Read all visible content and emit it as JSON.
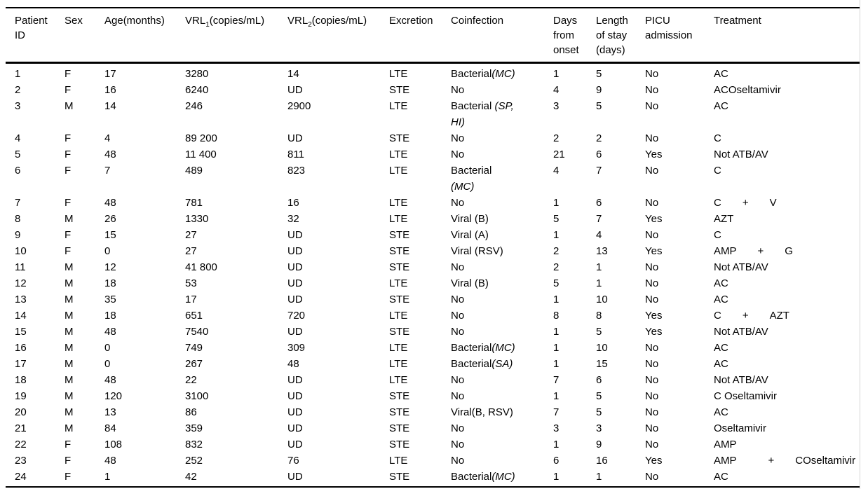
{
  "table": {
    "headers": [
      {
        "label": "Patient\nID"
      },
      {
        "label": "Sex"
      },
      {
        "label": "Age(months)"
      },
      {
        "pre": "VRL",
        "sub": "1",
        "post": "(copies/mL)"
      },
      {
        "pre": "VRL",
        "sub": "2",
        "post": "(copies/mL)"
      },
      {
        "label": "Excretion"
      },
      {
        "label": "Coinfection"
      },
      {
        "label": "Days\nfrom\nonset"
      },
      {
        "label": "Length\nof stay\n(days)"
      },
      {
        "label": "PICU\nadmission"
      },
      {
        "label": "Treatment"
      }
    ],
    "rows": [
      {
        "id": "1",
        "sex": "F",
        "age": "17",
        "vrl1": "3280",
        "vrl2": "14",
        "excretion": "LTE",
        "coinfection": [
          {
            "t": "Bacterial",
            "i": false
          },
          {
            "t": "(MC)",
            "i": true
          }
        ],
        "days_from_onset": "1",
        "length_of_stay": "5",
        "picu": "No",
        "treatment": "AC"
      },
      {
        "id": "2",
        "sex": "F",
        "age": "16",
        "vrl1": "6240",
        "vrl2": "UD",
        "excretion": "STE",
        "coinfection": [
          {
            "t": "No",
            "i": false
          }
        ],
        "days_from_onset": "4",
        "length_of_stay": "9",
        "picu": "No",
        "treatment": "ACOseltamivir"
      },
      {
        "id": "3",
        "sex": "M",
        "age": "14",
        "vrl1": "246",
        "vrl2": "2900",
        "excretion": "LTE",
        "coinfection": [
          {
            "t": "Bacterial ",
            "i": false
          },
          {
            "t": "(SP,\nHI)",
            "i": true
          }
        ],
        "days_from_onset": "3",
        "length_of_stay": "5",
        "picu": "No",
        "treatment": "AC"
      },
      {
        "id": "4",
        "sex": "F",
        "age": "4",
        "vrl1": "89 200",
        "vrl2": "UD",
        "excretion": "STE",
        "coinfection": [
          {
            "t": "No",
            "i": false
          }
        ],
        "days_from_onset": "2",
        "length_of_stay": "2",
        "picu": "No",
        "treatment": "C"
      },
      {
        "id": "5",
        "sex": "F",
        "age": "48",
        "vrl1": "11 400",
        "vrl2": "811",
        "excretion": "LTE",
        "coinfection": [
          {
            "t": "No",
            "i": false
          }
        ],
        "days_from_onset": "21",
        "length_of_stay": "6",
        "picu": "Yes",
        "treatment": "Not ATB/AV"
      },
      {
        "id": "6",
        "sex": "F",
        "age": "7",
        "vrl1": "489",
        "vrl2": "823",
        "excretion": "LTE",
        "coinfection": [
          {
            "t": "Bacterial\n",
            "i": false
          },
          {
            "t": "(MC)",
            "i": true
          }
        ],
        "days_from_onset": "4",
        "length_of_stay": "7",
        "picu": "No",
        "treatment": "C"
      },
      {
        "id": "7",
        "sex": "F",
        "age": "48",
        "vrl1": "781",
        "vrl2": "16",
        "excretion": "LTE",
        "coinfection": [
          {
            "t": "No",
            "i": false
          }
        ],
        "days_from_onset": "1",
        "length_of_stay": "6",
        "picu": "No",
        "treatment": "C  +  V"
      },
      {
        "id": "8",
        "sex": "M",
        "age": "26",
        "vrl1": "1330",
        "vrl2": "32",
        "excretion": "LTE",
        "coinfection": [
          {
            "t": "Viral (B)",
            "i": false
          }
        ],
        "days_from_onset": "5",
        "length_of_stay": "7",
        "picu": "Yes",
        "treatment": "AZT"
      },
      {
        "id": "9",
        "sex": "F",
        "age": "15",
        "vrl1": "27",
        "vrl2": "UD",
        "excretion": "STE",
        "coinfection": [
          {
            "t": "Viral (A)",
            "i": false
          }
        ],
        "days_from_onset": "1",
        "length_of_stay": "4",
        "picu": "No",
        "treatment": "C"
      },
      {
        "id": "10",
        "sex": "F",
        "age": "0",
        "vrl1": "27",
        "vrl2": "UD",
        "excretion": "STE",
        "coinfection": [
          {
            "t": "Viral (RSV)",
            "i": false
          }
        ],
        "days_from_onset": "2",
        "length_of_stay": "13",
        "picu": "Yes",
        "treatment": "AMP  +  G"
      },
      {
        "id": "11",
        "sex": "M",
        "age": "12",
        "vrl1": "41 800",
        "vrl2": "UD",
        "excretion": "STE",
        "coinfection": [
          {
            "t": "No",
            "i": false
          }
        ],
        "days_from_onset": "2",
        "length_of_stay": "1",
        "picu": "No",
        "treatment": "Not ATB/AV"
      },
      {
        "id": "12",
        "sex": "M",
        "age": "18",
        "vrl1": "53",
        "vrl2": "UD",
        "excretion": "LTE",
        "coinfection": [
          {
            "t": "Viral (B)",
            "i": false
          }
        ],
        "days_from_onset": "5",
        "length_of_stay": "1",
        "picu": "No",
        "treatment": "AC"
      },
      {
        "id": "13",
        "sex": "M",
        "age": "35",
        "vrl1": "17",
        "vrl2": "UD",
        "excretion": "STE",
        "coinfection": [
          {
            "t": "No",
            "i": false
          }
        ],
        "days_from_onset": "1",
        "length_of_stay": "10",
        "picu": "No",
        "treatment": "AC"
      },
      {
        "id": "14",
        "sex": "M",
        "age": "18",
        "vrl1": "651",
        "vrl2": "720",
        "excretion": "LTE",
        "coinfection": [
          {
            "t": "No",
            "i": false
          }
        ],
        "days_from_onset": "8",
        "length_of_stay": "8",
        "picu": "Yes",
        "treatment": "C  +  AZT"
      },
      {
        "id": "15",
        "sex": "M",
        "age": "48",
        "vrl1": "7540",
        "vrl2": "UD",
        "excretion": "STE",
        "coinfection": [
          {
            "t": "No",
            "i": false
          }
        ],
        "days_from_onset": "1",
        "length_of_stay": "5",
        "picu": "Yes",
        "treatment": "Not ATB/AV"
      },
      {
        "id": "16",
        "sex": "M",
        "age": "0",
        "vrl1": "749",
        "vrl2": "309",
        "excretion": "LTE",
        "coinfection": [
          {
            "t": "Bacterial",
            "i": false
          },
          {
            "t": "(MC)",
            "i": true
          }
        ],
        "days_from_onset": "1",
        "length_of_stay": "10",
        "picu": "No",
        "treatment": "AC"
      },
      {
        "id": "17",
        "sex": "M",
        "age": "0",
        "vrl1": "267",
        "vrl2": "48",
        "excretion": "LTE",
        "coinfection": [
          {
            "t": "Bacterial",
            "i": false
          },
          {
            "t": "(SA)",
            "i": true
          }
        ],
        "days_from_onset": "1",
        "length_of_stay": "15",
        "picu": "No",
        "treatment": "AC"
      },
      {
        "id": "18",
        "sex": "M",
        "age": "48",
        "vrl1": "22",
        "vrl2": "UD",
        "excretion": "LTE",
        "coinfection": [
          {
            "t": "No",
            "i": false
          }
        ],
        "days_from_onset": "7",
        "length_of_stay": "6",
        "picu": "No",
        "treatment": "Not ATB/AV"
      },
      {
        "id": "19",
        "sex": "M",
        "age": "120",
        "vrl1": "3100",
        "vrl2": "UD",
        "excretion": "STE",
        "coinfection": [
          {
            "t": "No",
            "i": false
          }
        ],
        "days_from_onset": "1",
        "length_of_stay": "5",
        "picu": "No",
        "treatment": "C Oseltamivir"
      },
      {
        "id": "20",
        "sex": "M",
        "age": "13",
        "vrl1": "86",
        "vrl2": "UD",
        "excretion": "STE",
        "coinfection": [
          {
            "t": "Viral(B, RSV)",
            "i": false
          }
        ],
        "days_from_onset": "7",
        "length_of_stay": "5",
        "picu": "No",
        "treatment": "AC"
      },
      {
        "id": "21",
        "sex": "M",
        "age": "84",
        "vrl1": "359",
        "vrl2": "UD",
        "excretion": "STE",
        "coinfection": [
          {
            "t": "No",
            "i": false
          }
        ],
        "days_from_onset": "3",
        "length_of_stay": "3",
        "picu": "No",
        "treatment": "Oseltamivir"
      },
      {
        "id": "22",
        "sex": "F",
        "age": "108",
        "vrl1": "832",
        "vrl2": "UD",
        "excretion": "STE",
        "coinfection": [
          {
            "t": "No",
            "i": false
          }
        ],
        "days_from_onset": "1",
        "length_of_stay": "9",
        "picu": "No",
        "treatment": "AMP"
      },
      {
        "id": "23",
        "sex": "F",
        "age": "48",
        "vrl1": "252",
        "vrl2": "76",
        "excretion": "LTE",
        "coinfection": [
          {
            "t": "No",
            "i": false
          }
        ],
        "days_from_onset": "6",
        "length_of_stay": "16",
        "picu": "Yes",
        "treatment": "AMP   +  COseltamivir"
      },
      {
        "id": "24",
        "sex": "F",
        "age": "1",
        "vrl1": "42",
        "vrl2": "UD",
        "excretion": "STE",
        "coinfection": [
          {
            "t": "Bacterial",
            "i": false
          },
          {
            "t": "(MC)",
            "i": true
          }
        ],
        "days_from_onset": "1",
        "length_of_stay": "1",
        "picu": "No",
        "treatment": "AC"
      }
    ]
  }
}
